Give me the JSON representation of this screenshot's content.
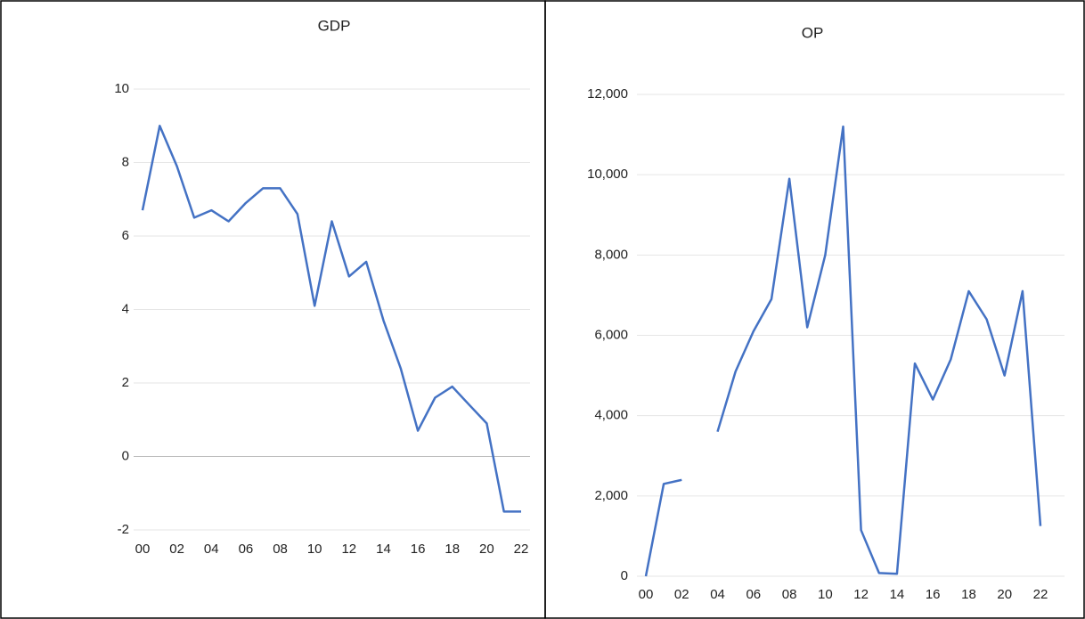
{
  "chart_data": [
    {
      "type": "line",
      "title": "GDP",
      "categories": [
        "00",
        null,
        "02",
        null,
        "04",
        null,
        "06",
        null,
        "08",
        null,
        "10",
        null,
        "12",
        null,
        "14",
        null,
        "16",
        null,
        "18",
        null,
        "20",
        null,
        "22"
      ],
      "series": [
        {
          "name": "GDP",
          "color": "#4472c4",
          "values": [
            6.7,
            9.0,
            7.9,
            6.5,
            6.7,
            6.4,
            6.9,
            7.3,
            7.3,
            6.6,
            4.1,
            6.4,
            4.9,
            5.3,
            3.7,
            2.4,
            0.7,
            1.6,
            1.9,
            1.4,
            0.9,
            -1.5,
            -1.5
          ]
        }
      ],
      "ylim": [
        -2,
        10
      ],
      "yticks": [
        -2,
        0,
        2,
        4,
        6,
        8,
        10
      ],
      "grid": true
    },
    {
      "type": "line",
      "title": "OP",
      "categories": [
        "00",
        null,
        "02",
        null,
        "04",
        null,
        "06",
        null,
        "08",
        null,
        "10",
        null,
        "12",
        null,
        "14",
        null,
        "16",
        null,
        "18",
        null,
        "20",
        null,
        "22"
      ],
      "series": [
        {
          "name": "OP",
          "color": "#4472c4",
          "values": [
            0,
            2300,
            2400,
            null,
            3600,
            5100,
            6100,
            6900,
            9900,
            6200,
            8000,
            11200,
            1150,
            80,
            60,
            5300,
            4400,
            5400,
            7100,
            6400,
            5000,
            7100,
            1250
          ]
        }
      ],
      "ylim": [
        0,
        12000
      ],
      "yticks": [
        0,
        {
          "value": 2000,
          "label": "2,000"
        },
        {
          "value": 4000,
          "label": "4,000"
        },
        {
          "value": 6000,
          "label": "6,000"
        },
        {
          "value": 8000,
          "label": "8,000"
        },
        {
          "value": 10000,
          "label": "10,000"
        },
        {
          "value": 12000,
          "label": "12,000"
        }
      ],
      "grid": true
    }
  ]
}
